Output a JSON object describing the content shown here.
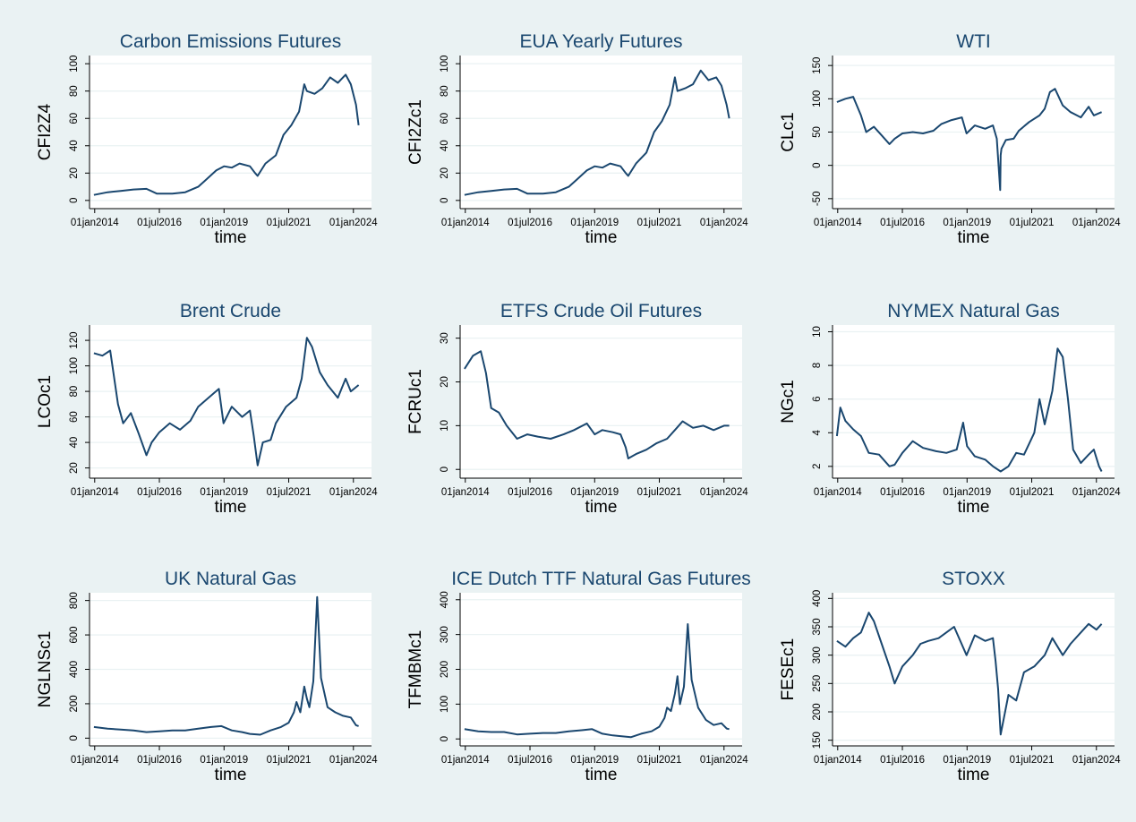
{
  "style": {
    "background": "#eaf2f3",
    "plot_bg": "#ffffff",
    "line_color": "#1a476f",
    "title_color": "#1a476f"
  },
  "chart_data": [
    {
      "type": "line",
      "title": "Carbon Emissions Futures",
      "xlabel": "time",
      "ylabel": "CFI2Z4",
      "xticks": [
        "01jan2014",
        "01jul2016",
        "01jan2019",
        "01jul2021",
        "01jan2024"
      ],
      "yticks": [
        0,
        20,
        40,
        60,
        80,
        100
      ],
      "ylim": [
        -6,
        106
      ],
      "xlim": [
        2013.8,
        2024.7
      ],
      "series": [
        {
          "name": "CFI2Z4",
          "x": [
            2013.97,
            2014.5,
            2015.0,
            2015.5,
            2016.0,
            2016.4,
            2016.6,
            2017.0,
            2017.5,
            2018.0,
            2018.3,
            2018.7,
            2019.0,
            2019.3,
            2019.6,
            2020.0,
            2020.2,
            2020.3,
            2020.6,
            2021.0,
            2021.3,
            2021.6,
            2021.9,
            2022.1,
            2022.2,
            2022.5,
            2022.8,
            2023.1,
            2023.4,
            2023.7,
            2023.9,
            2024.1,
            2024.2
          ],
          "values": [
            4,
            6,
            7,
            8,
            8.5,
            5,
            5,
            5,
            6,
            10,
            15,
            22,
            25,
            24,
            27,
            25,
            20,
            18,
            27,
            33,
            48,
            55,
            65,
            85,
            80,
            78,
            82,
            90,
            86,
            92,
            85,
            70,
            55
          ]
        }
      ]
    },
    {
      "type": "line",
      "title": "EUA Yearly Futures",
      "xlabel": "time",
      "ylabel": "CFI2Zc1",
      "xticks": [
        "01jan2014",
        "01jul2016",
        "01jan2019",
        "01jul2021",
        "01jan2024"
      ],
      "yticks": [
        0,
        20,
        40,
        60,
        80,
        100
      ],
      "ylim": [
        -6,
        106
      ],
      "xlim": [
        2013.8,
        2024.7
      ],
      "series": [
        {
          "name": "CFI2Zc1",
          "x": [
            2013.97,
            2014.5,
            2015.0,
            2015.5,
            2016.0,
            2016.4,
            2016.6,
            2017.0,
            2017.5,
            2018.0,
            2018.3,
            2018.7,
            2019.0,
            2019.3,
            2019.6,
            2020.0,
            2020.2,
            2020.3,
            2020.6,
            2021.0,
            2021.3,
            2021.6,
            2021.9,
            2022.1,
            2022.2,
            2022.5,
            2022.8,
            2023.1,
            2023.4,
            2023.7,
            2023.9,
            2024.1,
            2024.2
          ],
          "values": [
            4,
            6,
            7,
            8,
            8.5,
            5,
            5,
            5,
            6,
            10,
            15,
            22,
            25,
            24,
            27,
            25,
            20,
            18,
            27,
            35,
            50,
            58,
            70,
            90,
            80,
            82,
            85,
            95,
            88,
            90,
            84,
            70,
            60
          ]
        }
      ]
    },
    {
      "type": "line",
      "title": "WTI",
      "xlabel": "time",
      "ylabel": "CLc1",
      "xticks": [
        "01jan2014",
        "01jul2016",
        "01jan2019",
        "01jul2021",
        "01jan2024"
      ],
      "yticks": [
        -50,
        0,
        50,
        100,
        150
      ],
      "ylim": [
        -65,
        165
      ],
      "xlim": [
        2013.8,
        2024.7
      ],
      "series": [
        {
          "name": "CLc1",
          "x": [
            2013.97,
            2014.3,
            2014.6,
            2014.9,
            2015.1,
            2015.4,
            2015.7,
            2016.0,
            2016.2,
            2016.5,
            2016.9,
            2017.3,
            2017.7,
            2018.0,
            2018.4,
            2018.8,
            2018.98,
            2019.3,
            2019.7,
            2020.0,
            2020.15,
            2020.28,
            2020.3,
            2020.33,
            2020.5,
            2020.8,
            2021.0,
            2021.4,
            2021.8,
            2022.0,
            2022.2,
            2022.4,
            2022.7,
            2023.0,
            2023.4,
            2023.7,
            2023.9,
            2024.2
          ],
          "values": [
            95,
            100,
            103,
            75,
            50,
            58,
            45,
            32,
            40,
            48,
            50,
            48,
            52,
            62,
            68,
            72,
            48,
            60,
            55,
            60,
            40,
            -37,
            15,
            25,
            38,
            40,
            52,
            65,
            75,
            85,
            110,
            115,
            90,
            80,
            72,
            88,
            75,
            80
          ]
        }
      ]
    },
    {
      "type": "line",
      "title": "Brent Crude",
      "xlabel": "time",
      "ylabel": "LCOc1",
      "xticks": [
        "01jan2014",
        "01jul2016",
        "01jan2019",
        "01jul2021",
        "01jan2024"
      ],
      "yticks": [
        20,
        40,
        60,
        80,
        100,
        120
      ],
      "ylim": [
        12,
        132
      ],
      "xlim": [
        2013.8,
        2024.7
      ],
      "series": [
        {
          "name": "LCOc1",
          "x": [
            2013.97,
            2014.3,
            2014.6,
            2014.9,
            2015.1,
            2015.4,
            2015.7,
            2016.0,
            2016.2,
            2016.5,
            2016.9,
            2017.3,
            2017.7,
            2018.0,
            2018.4,
            2018.8,
            2018.98,
            2019.3,
            2019.7,
            2020.0,
            2020.15,
            2020.3,
            2020.5,
            2020.8,
            2021.0,
            2021.4,
            2021.8,
            2022.0,
            2022.2,
            2022.4,
            2022.7,
            2023.0,
            2023.4,
            2023.7,
            2023.9,
            2024.2
          ],
          "values": [
            110,
            108,
            112,
            70,
            55,
            63,
            47,
            30,
            40,
            48,
            55,
            50,
            57,
            68,
            75,
            82,
            55,
            68,
            60,
            65,
            45,
            22,
            40,
            42,
            55,
            68,
            75,
            90,
            122,
            115,
            95,
            85,
            75,
            90,
            80,
            85
          ]
        }
      ]
    },
    {
      "type": "line",
      "title": "ETFS Crude Oil Futures",
      "xlabel": "time",
      "ylabel": "FCRUc1",
      "xticks": [
        "01jan2014",
        "01jul2016",
        "01jan2019",
        "01jul2021",
        "01jan2024"
      ],
      "yticks": [
        0,
        10,
        20,
        30
      ],
      "ylim": [
        -2,
        33
      ],
      "xlim": [
        2013.8,
        2024.7
      ],
      "series": [
        {
          "name": "FCRUc1",
          "x": [
            2013.97,
            2014.3,
            2014.6,
            2014.8,
            2015.0,
            2015.3,
            2015.6,
            2016.0,
            2016.4,
            2016.8,
            2017.3,
            2017.8,
            2018.2,
            2018.7,
            2019.0,
            2019.3,
            2019.7,
            2020.0,
            2020.2,
            2020.3,
            2020.6,
            2021.0,
            2021.4,
            2021.8,
            2022.1,
            2022.4,
            2022.8,
            2023.2,
            2023.6,
            2024.0,
            2024.2
          ],
          "values": [
            23,
            26,
            27,
            22,
            14,
            13,
            10,
            7,
            8,
            7.5,
            7,
            8,
            9,
            10.5,
            8,
            9,
            8.5,
            8,
            5,
            2.5,
            3.5,
            4.5,
            6,
            7,
            9,
            11,
            9.5,
            10,
            9,
            10,
            10
          ]
        }
      ]
    },
    {
      "type": "line",
      "title": "NYMEX Natural Gas",
      "xlabel": "time",
      "ylabel": "NGc1",
      "xticks": [
        "01jan2014",
        "01jul2016",
        "01jan2019",
        "01jul2021",
        "01jan2024"
      ],
      "yticks": [
        2,
        4,
        6,
        8,
        10
      ],
      "ylim": [
        1.3,
        10.4
      ],
      "xlim": [
        2013.8,
        2024.7
      ],
      "series": [
        {
          "name": "NGc1",
          "x": [
            2013.97,
            2014.1,
            2014.3,
            2014.6,
            2014.9,
            2015.2,
            2015.6,
            2016.0,
            2016.2,
            2016.5,
            2016.9,
            2017.3,
            2017.8,
            2018.2,
            2018.6,
            2018.85,
            2019.0,
            2019.3,
            2019.7,
            2020.0,
            2020.3,
            2020.6,
            2020.9,
            2021.2,
            2021.6,
            2021.8,
            2022.0,
            2022.3,
            2022.5,
            2022.7,
            2022.9,
            2023.1,
            2023.4,
            2023.7,
            2023.9,
            2024.1,
            2024.2
          ],
          "values": [
            3.8,
            5.5,
            4.7,
            4.2,
            3.8,
            2.8,
            2.7,
            2.0,
            2.1,
            2.8,
            3.5,
            3.1,
            2.9,
            2.8,
            3.0,
            4.6,
            3.2,
            2.6,
            2.4,
            2.0,
            1.7,
            2.0,
            2.8,
            2.7,
            4.0,
            6.0,
            4.5,
            6.5,
            9.0,
            8.5,
            6.0,
            3.0,
            2.2,
            2.7,
            3.0,
            2.0,
            1.7
          ]
        }
      ]
    },
    {
      "type": "line",
      "title": "UK Natural Gas",
      "xlabel": "time",
      "ylabel": "NGLNSc1",
      "xticks": [
        "01jan2014",
        "01jul2016",
        "01jan2019",
        "01jul2021",
        "01jan2024"
      ],
      "yticks": [
        0,
        200,
        400,
        600,
        800
      ],
      "ylim": [
        -45,
        845
      ],
      "xlim": [
        2013.8,
        2024.7
      ],
      "series": [
        {
          "name": "NGLNSc1",
          "x": [
            2013.97,
            2014.5,
            2015.0,
            2015.5,
            2016.0,
            2016.5,
            2017.0,
            2017.5,
            2018.0,
            2018.5,
            2018.9,
            2019.3,
            2019.7,
            2020.0,
            2020.4,
            2020.8,
            2021.2,
            2021.5,
            2021.7,
            2021.8,
            2021.95,
            2022.1,
            2022.2,
            2022.3,
            2022.45,
            2022.6,
            2022.75,
            2023.0,
            2023.3,
            2023.6,
            2023.9,
            2024.1,
            2024.2
          ],
          "values": [
            65,
            55,
            50,
            45,
            35,
            40,
            45,
            45,
            55,
            65,
            70,
            45,
            35,
            25,
            20,
            45,
            65,
            90,
            150,
            210,
            150,
            300,
            230,
            180,
            330,
            820,
            350,
            180,
            150,
            130,
            120,
            75,
            70
          ]
        }
      ]
    },
    {
      "type": "line",
      "title": "ICE Dutch TTF Natural Gas Futures",
      "xlabel": "time",
      "ylabel": "TFMBMc1",
      "xticks": [
        "01jan2014",
        "01jul2016",
        "01jan2019",
        "01jul2021",
        "01jan2024"
      ],
      "yticks": [
        0,
        100,
        200,
        300,
        400
      ],
      "ylim": [
        -20,
        420
      ],
      "xlim": [
        2013.8,
        2024.7
      ],
      "series": [
        {
          "name": "TFMBMc1",
          "x": [
            2013.97,
            2014.5,
            2015.0,
            2015.5,
            2016.0,
            2016.5,
            2017.0,
            2017.5,
            2018.0,
            2018.5,
            2018.9,
            2019.3,
            2019.7,
            2020.0,
            2020.4,
            2020.8,
            2021.2,
            2021.5,
            2021.7,
            2021.8,
            2021.95,
            2022.1,
            2022.2,
            2022.3,
            2022.45,
            2022.6,
            2022.75,
            2023.0,
            2023.3,
            2023.6,
            2023.9,
            2024.1,
            2024.2
          ],
          "values": [
            28,
            22,
            20,
            20,
            13,
            15,
            17,
            17,
            22,
            25,
            28,
            15,
            10,
            8,
            5,
            15,
            22,
            35,
            60,
            90,
            80,
            130,
            180,
            100,
            150,
            330,
            170,
            90,
            55,
            40,
            45,
            30,
            28
          ]
        }
      ]
    },
    {
      "type": "line",
      "title": "STOXX",
      "xlabel": "time",
      "ylabel": "FESEc1",
      "xticks": [
        "01jan2014",
        "01jul2016",
        "01jan2019",
        "01jul2021",
        "01jan2024"
      ],
      "yticks": [
        150,
        200,
        250,
        300,
        350,
        400
      ],
      "ylim": [
        140,
        410
      ],
      "xlim": [
        2013.8,
        2024.7
      ],
      "series": [
        {
          "name": "FESEc1",
          "x": [
            2013.97,
            2014.3,
            2014.6,
            2014.9,
            2015.2,
            2015.4,
            2015.7,
            2016.0,
            2016.2,
            2016.5,
            2016.9,
            2017.2,
            2017.5,
            2017.9,
            2018.2,
            2018.5,
            2018.98,
            2019.3,
            2019.7,
            2020.0,
            2020.1,
            2020.2,
            2020.3,
            2020.6,
            2020.9,
            2021.2,
            2021.6,
            2022.0,
            2022.3,
            2022.7,
            2023.0,
            2023.4,
            2023.7,
            2024.0,
            2024.2
          ],
          "values": [
            325,
            315,
            330,
            340,
            375,
            360,
            320,
            280,
            250,
            280,
            300,
            320,
            325,
            330,
            340,
            350,
            300,
            335,
            325,
            330,
            290,
            240,
            160,
            230,
            220,
            270,
            280,
            300,
            330,
            300,
            320,
            340,
            355,
            345,
            355
          ]
        }
      ]
    }
  ]
}
